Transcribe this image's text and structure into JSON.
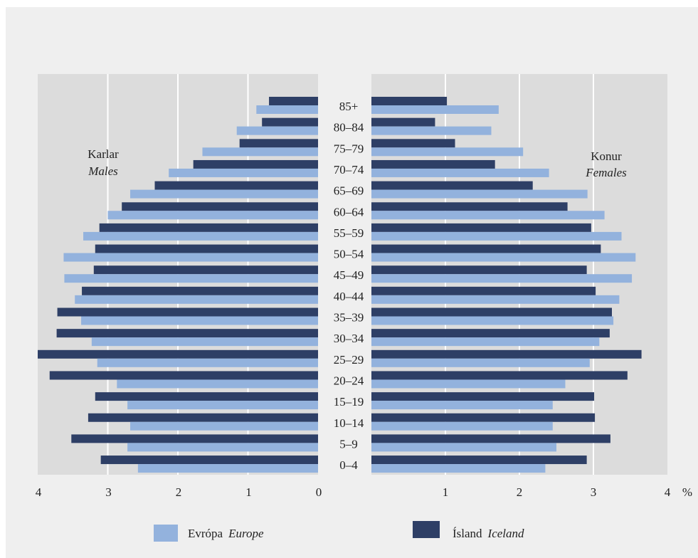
{
  "chart_data": {
    "type": "bar",
    "orientation": "horizontal-population-pyramid",
    "categories": [
      "85+",
      "80–84",
      "75–79",
      "70–74",
      "65–69",
      "60–64",
      "55–59",
      "50–54",
      "45–49",
      "40–44",
      "35–39",
      "30–34",
      "25–29",
      "20–24",
      "15–19",
      "10–14",
      "5–9",
      "0–4"
    ],
    "males": {
      "label_primary": "Karlar",
      "label_secondary": "Males",
      "series": [
        {
          "name": "Ísland Iceland",
          "values": [
            0.7,
            0.8,
            1.12,
            1.78,
            2.33,
            2.8,
            3.12,
            3.18,
            3.2,
            3.37,
            3.72,
            3.73,
            4.0,
            3.83,
            3.18,
            3.28,
            3.52,
            3.1
          ]
        },
        {
          "name": "Evrópa Europe",
          "values": [
            0.88,
            1.16,
            1.65,
            2.13,
            2.68,
            3.0,
            3.35,
            3.63,
            3.62,
            3.47,
            3.38,
            3.23,
            3.15,
            2.87,
            2.72,
            2.68,
            2.72,
            2.57
          ]
        }
      ]
    },
    "females": {
      "label_primary": "Konur",
      "label_secondary": "Females",
      "series": [
        {
          "name": "Ísland Iceland",
          "values": [
            1.02,
            0.86,
            1.13,
            1.67,
            2.18,
            2.65,
            2.97,
            3.1,
            2.91,
            3.03,
            3.25,
            3.22,
            3.65,
            3.46,
            3.01,
            3.02,
            3.23,
            2.91
          ]
        },
        {
          "name": "Evrópa Europe",
          "values": [
            1.72,
            1.62,
            2.05,
            2.4,
            2.92,
            3.15,
            3.38,
            3.57,
            3.52,
            3.35,
            3.27,
            3.08,
            2.95,
            2.62,
            2.45,
            2.45,
            2.5,
            2.35
          ]
        }
      ]
    },
    "xaxis_left_ticks": [
      "4",
      "3",
      "2",
      "1",
      "0"
    ],
    "xaxis_right_ticks": [
      "1",
      "2",
      "3",
      "4"
    ],
    "xaxis_unit": "%",
    "xlim": [
      0,
      4
    ],
    "grid": true,
    "colors": {
      "iceland": "#2e3f66",
      "europe": "#93b2dd",
      "plot_bg": "#dcdcdc",
      "page_bg": "#efefef",
      "gridline": "#ffffff"
    }
  },
  "legend": {
    "position": "bottom",
    "items": [
      {
        "label": "Evrópa",
        "label_italic": "Europe",
        "color_key": "europe"
      },
      {
        "label": "Ísland",
        "label_italic": "Iceland",
        "color_key": "iceland"
      }
    ]
  }
}
